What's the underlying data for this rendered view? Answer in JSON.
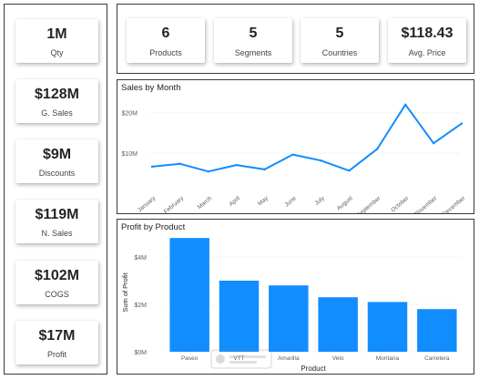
{
  "kpis_left": [
    {
      "value": "1M",
      "label": "Qty"
    },
    {
      "value": "$128M",
      "label": "G. Sales"
    },
    {
      "value": "$9M",
      "label": "Discounts"
    },
    {
      "value": "$119M",
      "label": "N. Sales"
    },
    {
      "value": "$102M",
      "label": "COGS"
    },
    {
      "value": "$17M",
      "label": "Profit"
    }
  ],
  "kpis_top": [
    {
      "value": "6",
      "label": "Products"
    },
    {
      "value": "5",
      "label": "Segments"
    },
    {
      "value": "5",
      "label": "Countries"
    },
    {
      "value": "$118.43",
      "label": "Avg. Price"
    }
  ],
  "colors": {
    "accent": "#118dff",
    "gridline": "#e5e5e5",
    "axis_text": "#605e5c",
    "border": "#3a3a3a"
  },
  "chart_data": [
    {
      "type": "line",
      "title": "Sales by Month",
      "categories": [
        "January",
        "February",
        "March",
        "April",
        "May",
        "June",
        "July",
        "August",
        "September",
        "October",
        "November",
        "December"
      ],
      "values": [
        6.6,
        7.3,
        5.4,
        7.0,
        5.9,
        9.6,
        8.1,
        5.6,
        11.0,
        22.0,
        12.4,
        17.3
      ],
      "y_ticks": [
        "$10M",
        "$20M"
      ],
      "ylim": [
        0,
        24
      ],
      "unit": "M",
      "grid": true
    },
    {
      "type": "bar",
      "title": "Profit by Product",
      "categories": [
        "Paseo",
        "VTT",
        "Amarilla",
        "Velo",
        "Montana",
        "Carretera"
      ],
      "values": [
        4.8,
        3.0,
        2.8,
        2.3,
        2.1,
        1.8
      ],
      "xlabel": "Product",
      "ylabel": "Sum of Profit",
      "y_ticks": [
        "$0M",
        "$2M",
        "$4M"
      ],
      "ylim": [
        0,
        5
      ],
      "unit": "M",
      "grid": true
    }
  ]
}
